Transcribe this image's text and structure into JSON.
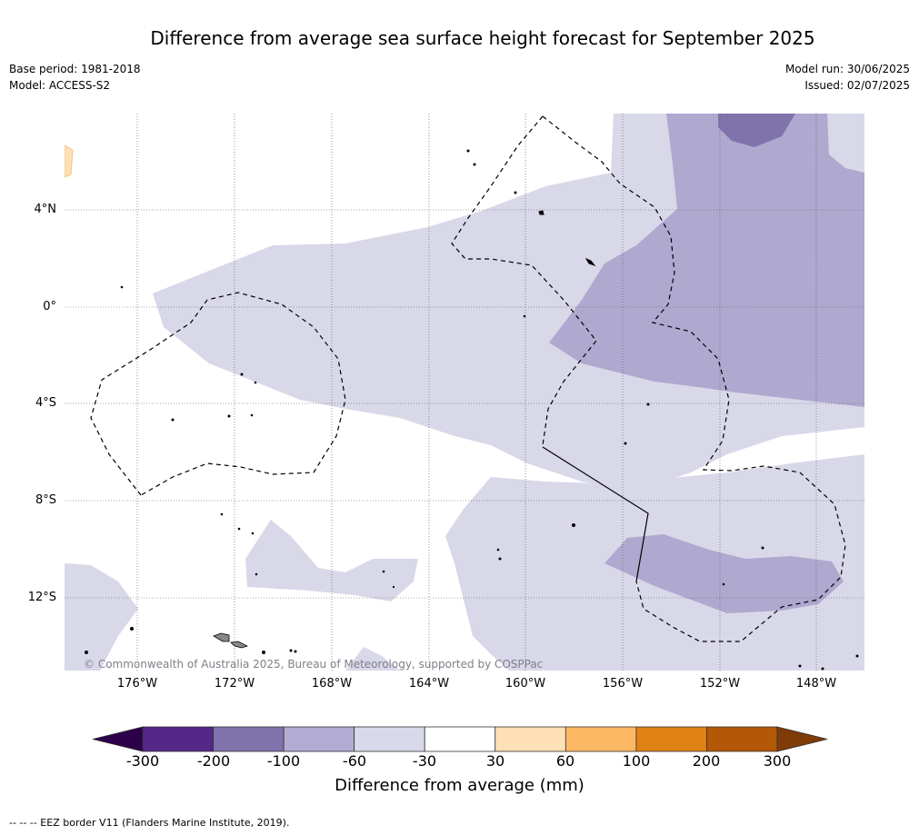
{
  "title": "Difference from average sea surface height forecast for September 2025",
  "meta": {
    "base_period": "Base period: 1981-2018",
    "model": "Model: ACCESS-S2",
    "model_run": "Model run: 30/06/2025",
    "issued": "Issued: 02/07/2025"
  },
  "map": {
    "lat_labels": [
      "4°N",
      "0°",
      "4°S",
      "8°S",
      "12°S"
    ],
    "lon_labels": [
      "176°W",
      "172°W",
      "168°W",
      "164°W",
      "160°W",
      "156°W",
      "152°W",
      "148°W"
    ],
    "copyright": "© Commonwealth of Australia 2025, Bureau of Meteorology, supported by COSPPac",
    "fill_colors": {
      "neg_30_60": "#d8d8e9",
      "neg_60_100": "#afa8cf",
      "neg_100_200": "#8073ac",
      "pos_30_60": "#fee0b6"
    }
  },
  "colorbar": {
    "ticks": [
      "-300",
      "-200",
      "-100",
      "-60",
      "-30",
      "30",
      "60",
      "100",
      "200",
      "300"
    ],
    "colors": [
      "#2d004b",
      "#542788",
      "#8073ac",
      "#b2abd2",
      "#d8daeb",
      "#ffffff",
      "#fee0b6",
      "#fdb863",
      "#e08214",
      "#b35806",
      "#7f3b08"
    ],
    "label": "Difference from average (mm)"
  },
  "footnote": "--  --  -- EEZ border V11 (Flanders Marine Institute, 2019)."
}
